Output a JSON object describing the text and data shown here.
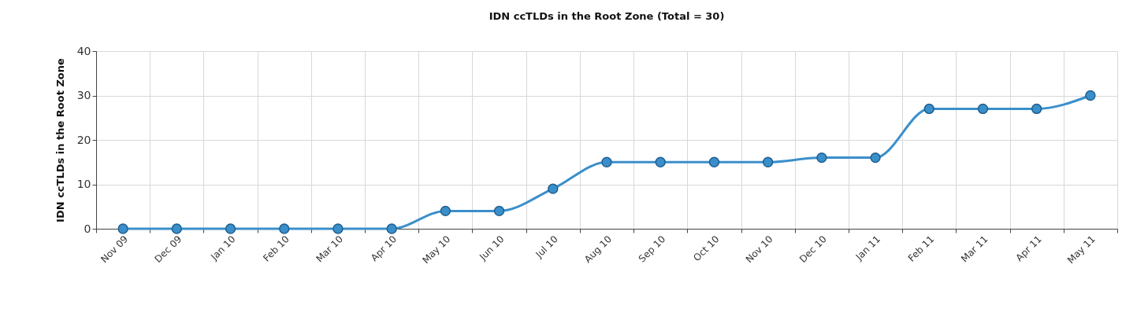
{
  "chart_data": {
    "type": "line",
    "title": "IDN ccTLDs in the Root Zone (Total = 30)",
    "ylabel": "IDN ccTLDs in the Root Zone",
    "categories": [
      "Nov 09",
      "Dec 09",
      "Jan 10",
      "Feb 10",
      "Mar 10",
      "Apr 10",
      "May 10",
      "Jun 10",
      "Jul 10",
      "Aug 10",
      "Sep 10",
      "Oct 10",
      "Nov 10",
      "Dec 10",
      "Jan 11",
      "Feb 11",
      "Mar 11",
      "Apr 11",
      "May 11"
    ],
    "series": [
      {
        "color": "#3a8fcb",
        "values": [
          0,
          0,
          0,
          0,
          0,
          0,
          4,
          4,
          9,
          15,
          15,
          15,
          15,
          16,
          16,
          27,
          27,
          27,
          30
        ]
      }
    ],
    "ylim": [
      0,
      40
    ],
    "yticks": [
      0,
      10,
      20,
      30,
      40
    ],
    "grid": true,
    "marker": "circle",
    "line_style": "solid"
  }
}
